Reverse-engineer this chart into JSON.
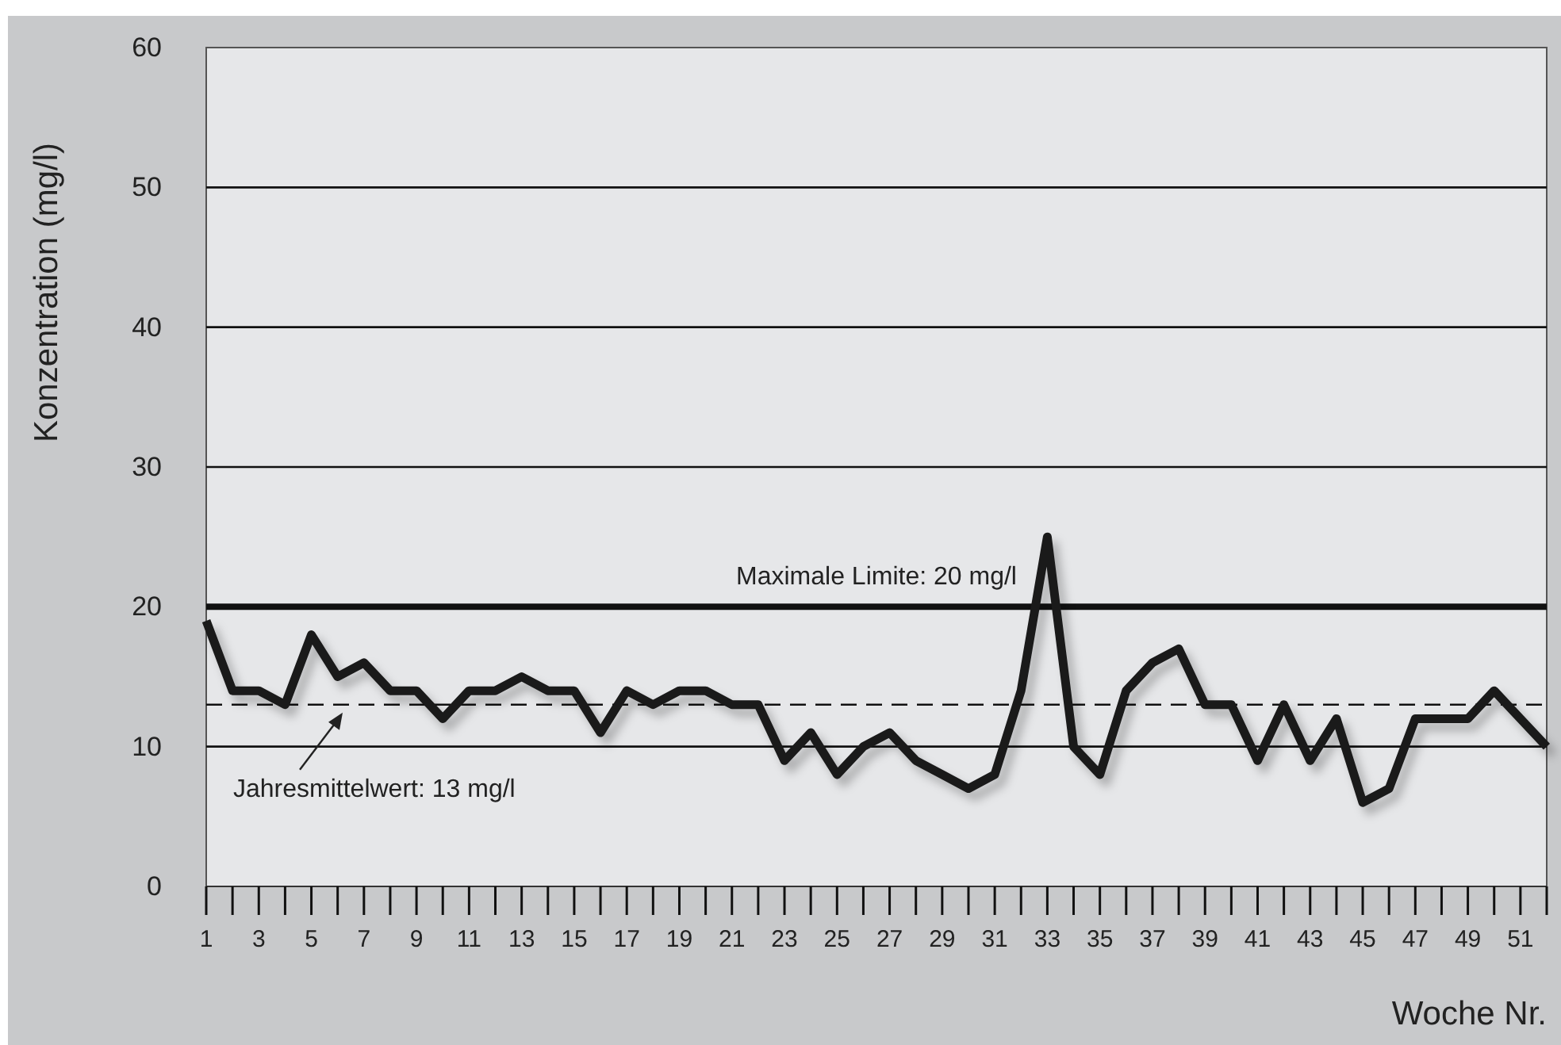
{
  "chart_data": {
    "type": "line",
    "xlabel": "Woche Nr.",
    "ylabel": "Konzentration (mg/l)",
    "x": [
      1,
      2,
      3,
      4,
      5,
      6,
      7,
      8,
      9,
      10,
      11,
      12,
      13,
      14,
      15,
      16,
      17,
      18,
      19,
      20,
      21,
      22,
      23,
      24,
      25,
      26,
      27,
      28,
      29,
      30,
      31,
      32,
      33,
      34,
      35,
      36,
      37,
      38,
      39,
      40,
      41,
      42,
      43,
      44,
      45,
      46,
      47,
      48,
      49,
      50,
      51,
      52
    ],
    "series": [
      {
        "color": "#1a1a1a",
        "values": [
          19,
          14,
          14,
          13,
          18,
          15,
          16,
          14,
          14,
          12,
          14,
          14,
          15,
          14,
          14,
          11,
          14,
          13,
          14,
          14,
          13,
          13,
          9,
          11,
          8,
          10,
          11,
          9,
          8,
          7,
          8,
          14,
          25,
          10,
          8,
          14,
          16,
          17,
          13,
          13,
          9,
          13,
          9,
          12,
          6,
          7,
          12,
          12,
          12,
          14,
          12,
          10
        ]
      }
    ],
    "xlim": [
      1,
      52
    ],
    "xticks": [
      1,
      3,
      5,
      7,
      9,
      11,
      13,
      15,
      17,
      19,
      21,
      23,
      25,
      27,
      29,
      31,
      33,
      35,
      37,
      39,
      41,
      43,
      45,
      47,
      49,
      51
    ],
    "ylim": [
      0,
      60
    ],
    "yticks": [
      0,
      10,
      20,
      30,
      40,
      50,
      60
    ],
    "grid": "y",
    "marker": "none",
    "line_style": "solid",
    "ref_lines": [
      {
        "axis": "y",
        "value": 20,
        "label": "Maximale Limite: 20 mg/l",
        "line_style": "solid"
      },
      {
        "axis": "y",
        "value": 13,
        "label": "Jahresmittelwert: 13 mg/l",
        "line_style": "dashed"
      }
    ]
  }
}
